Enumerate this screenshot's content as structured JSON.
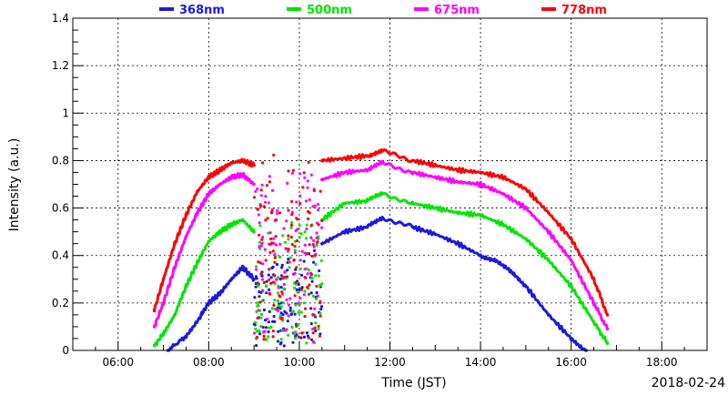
{
  "chart_data": {
    "type": "scatter",
    "title": "",
    "xlabel": "Time (JST)",
    "ylabel": "Intensity (a.u.)",
    "date_label": "2018-02-24",
    "xlim": [
      "05:00",
      "19:00"
    ],
    "ylim": [
      0,
      1.4
    ],
    "x_ticks": [
      "06:00",
      "08:00",
      "10:00",
      "12:00",
      "14:00",
      "16:00",
      "18:00"
    ],
    "y_ticks": [
      "0",
      "0.2",
      "0.4",
      "0.6",
      "0.8",
      "1",
      "1.2",
      "1.4"
    ],
    "grid": true,
    "legend_position": "top",
    "series": [
      {
        "name": "368nm",
        "color": "#1a1adc",
        "points": [
          [
            "07:06",
            0.0
          ],
          [
            "07:30",
            0.06
          ],
          [
            "07:50",
            0.15
          ],
          [
            "08:00",
            0.2
          ],
          [
            "08:15",
            0.24
          ],
          [
            "08:30",
            0.3
          ],
          [
            "08:45",
            0.35
          ],
          [
            "09:00",
            0.3
          ],
          [
            "10:30",
            0.45
          ],
          [
            "11:00",
            0.5
          ],
          [
            "11:30",
            0.52
          ],
          [
            "11:50",
            0.56
          ],
          [
            "12:30",
            0.52
          ],
          [
            "13:00",
            0.49
          ],
          [
            "13:30",
            0.45
          ],
          [
            "14:00",
            0.4
          ],
          [
            "14:20",
            0.38
          ],
          [
            "14:40",
            0.33
          ],
          [
            "15:00",
            0.27
          ],
          [
            "15:30",
            0.15
          ],
          [
            "16:00",
            0.05
          ],
          [
            "16:20",
            0.0
          ]
        ]
      },
      {
        "name": "500nm",
        "color": "#00e600",
        "points": [
          [
            "06:48",
            0.02
          ],
          [
            "07:00",
            0.07
          ],
          [
            "07:15",
            0.15
          ],
          [
            "07:30",
            0.27
          ],
          [
            "07:45",
            0.37
          ],
          [
            "08:00",
            0.46
          ],
          [
            "08:15",
            0.5
          ],
          [
            "08:30",
            0.53
          ],
          [
            "08:45",
            0.55
          ],
          [
            "09:00",
            0.5
          ],
          [
            "10:30",
            0.55
          ],
          [
            "11:00",
            0.62
          ],
          [
            "11:30",
            0.63
          ],
          [
            "11:50",
            0.66
          ],
          [
            "12:30",
            0.62
          ],
          [
            "13:00",
            0.6
          ],
          [
            "13:30",
            0.58
          ],
          [
            "14:00",
            0.57
          ],
          [
            "14:30",
            0.53
          ],
          [
            "15:00",
            0.47
          ],
          [
            "15:30",
            0.38
          ],
          [
            "16:00",
            0.27
          ],
          [
            "16:30",
            0.12
          ],
          [
            "16:48",
            0.03
          ]
        ]
      },
      {
        "name": "675nm",
        "color": "#ff00ff",
        "points": [
          [
            "06:48",
            0.1
          ],
          [
            "07:00",
            0.2
          ],
          [
            "07:15",
            0.35
          ],
          [
            "07:30",
            0.48
          ],
          [
            "07:45",
            0.58
          ],
          [
            "08:00",
            0.66
          ],
          [
            "08:15",
            0.7
          ],
          [
            "08:30",
            0.73
          ],
          [
            "08:45",
            0.74
          ],
          [
            "09:00",
            0.7
          ],
          [
            "10:30",
            0.72
          ],
          [
            "11:00",
            0.75
          ],
          [
            "11:30",
            0.76
          ],
          [
            "11:50",
            0.79
          ],
          [
            "12:30",
            0.75
          ],
          [
            "13:00",
            0.73
          ],
          [
            "13:30",
            0.71
          ],
          [
            "14:00",
            0.7
          ],
          [
            "14:30",
            0.66
          ],
          [
            "15:00",
            0.6
          ],
          [
            "15:30",
            0.5
          ],
          [
            "16:00",
            0.38
          ],
          [
            "16:30",
            0.2
          ],
          [
            "16:48",
            0.09
          ]
        ]
      },
      {
        "name": "778nm",
        "color": "#ff0000",
        "points": [
          [
            "06:48",
            0.17
          ],
          [
            "07:00",
            0.3
          ],
          [
            "07:15",
            0.45
          ],
          [
            "07:30",
            0.57
          ],
          [
            "07:45",
            0.67
          ],
          [
            "08:00",
            0.73
          ],
          [
            "08:15",
            0.76
          ],
          [
            "08:30",
            0.79
          ],
          [
            "08:45",
            0.8
          ],
          [
            "09:00",
            0.78
          ],
          [
            "10:30",
            0.8
          ],
          [
            "11:00",
            0.81
          ],
          [
            "11:30",
            0.82
          ],
          [
            "11:50",
            0.84
          ],
          [
            "12:30",
            0.8
          ],
          [
            "13:00",
            0.78
          ],
          [
            "13:30",
            0.76
          ],
          [
            "14:00",
            0.75
          ],
          [
            "14:30",
            0.73
          ],
          [
            "15:00",
            0.68
          ],
          [
            "15:30",
            0.58
          ],
          [
            "16:00",
            0.47
          ],
          [
            "16:30",
            0.3
          ],
          [
            "16:48",
            0.15
          ]
        ]
      }
    ]
  }
}
